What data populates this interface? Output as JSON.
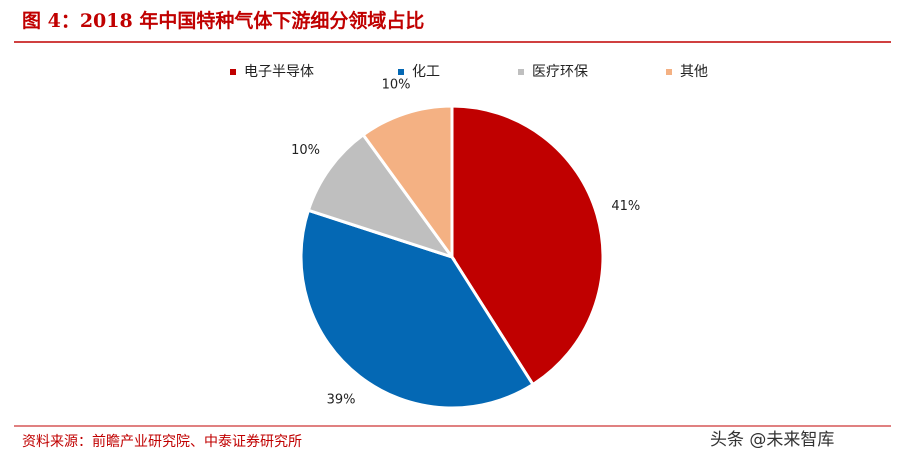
{
  "chart_data": {
    "type": "pie",
    "title": "图 4：2018 年中国特种气体下游细分领域占比",
    "categories": [
      "电子半导体",
      "化工",
      "医疗环保",
      "其他"
    ],
    "values": [
      41,
      39,
      10,
      10
    ],
    "value_labels": [
      "41%",
      "39%",
      "10%",
      "10%"
    ],
    "colors": [
      "#c00000",
      "#0468b4",
      "#bfbfbf",
      "#f4b183"
    ],
    "legend": "top",
    "source": "资料来源：前瞻产业研究院、中泰证券研究所",
    "watermark": "头条 @未来智库"
  }
}
